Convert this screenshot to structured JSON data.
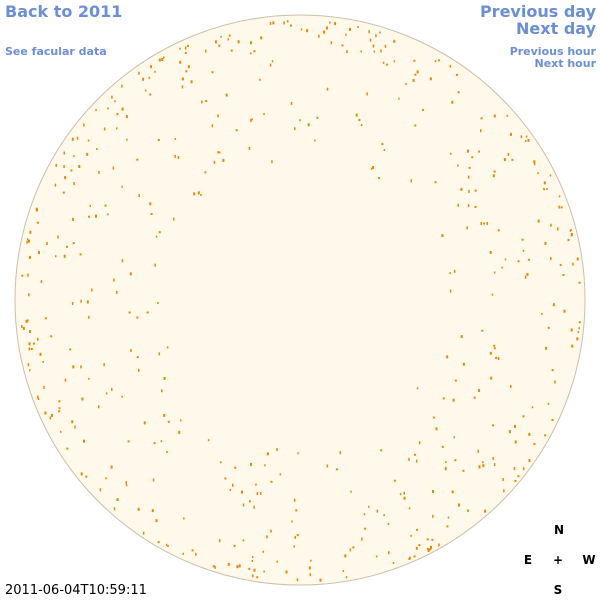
{
  "nav": {
    "back_year": "Back to 2011",
    "facular_data": "See facular data",
    "previous_day": "Previous day",
    "next_day": "Next day",
    "previous_hour": "Previous hour",
    "next_hour": "Next hour"
  },
  "timestamp": "2011-06-04T10:59:11",
  "compass": {
    "north": "N",
    "east": "E",
    "center": "+",
    "west": "W",
    "south": "S"
  }
}
